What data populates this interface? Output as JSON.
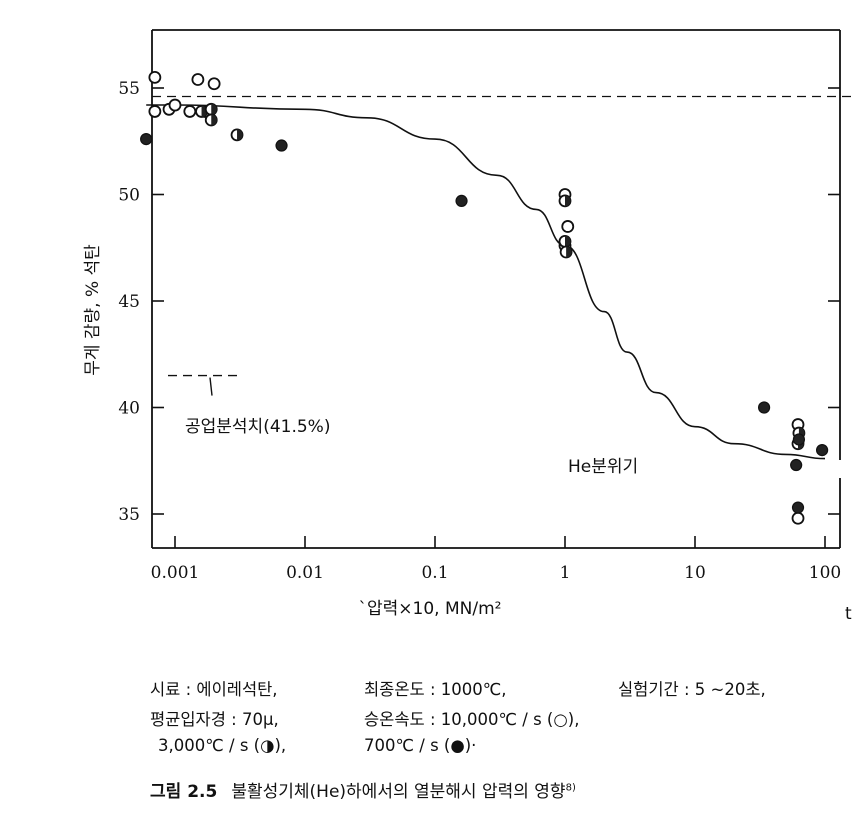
{
  "chart_data": {
    "type": "scatter",
    "x_scale": "log",
    "xlim": [
      0.0006,
      100
    ],
    "ylim": [
      34,
      57
    ],
    "x_ticks": [
      {
        "value": 0.001,
        "label": "0.001"
      },
      {
        "value": 0.01,
        "label": "0.01"
      },
      {
        "value": 0.1,
        "label": "0.1"
      },
      {
        "value": 1,
        "label": "1"
      },
      {
        "value": 10,
        "label": "10"
      },
      {
        "value": 100,
        "label": "100"
      }
    ],
    "y_ticks": [
      {
        "value": 35,
        "label": "35"
      },
      {
        "value": 40,
        "label": "40"
      },
      {
        "value": 45,
        "label": "45"
      },
      {
        "value": 50,
        "label": "50"
      },
      {
        "value": 55,
        "label": "55"
      }
    ],
    "xlabel": "`압력×10, MN/m²",
    "ylabel": "무게 감량, % 석탄",
    "annotations": {
      "industrial": "공업분석치(41.5%)",
      "atmosphere": "He분위기"
    },
    "reference_lines": {
      "industrial_value": 41.5,
      "upper_dashed": 54.6
    },
    "series": [
      {
        "name": "10,000℃/s (○)",
        "marker": "open",
        "points": [
          {
            "x": 0.0007,
            "y": 55.5
          },
          {
            "x": 0.0007,
            "y": 53.9
          },
          {
            "x": 0.0009,
            "y": 54.0
          },
          {
            "x": 0.001,
            "y": 54.2
          },
          {
            "x": 0.0013,
            "y": 53.9
          },
          {
            "x": 0.0015,
            "y": 55.4
          },
          {
            "x": 0.0017,
            "y": 53.9
          },
          {
            "x": 0.002,
            "y": 55.2
          },
          {
            "x": 1.0,
            "y": 50.0
          },
          {
            "x": 1.05,
            "y": 48.5
          },
          {
            "x": 1.0,
            "y": 47.6
          },
          {
            "x": 62,
            "y": 39.2
          },
          {
            "x": 62,
            "y": 34.8
          }
        ]
      },
      {
        "name": "3,000℃/s (◑)",
        "marker": "half",
        "points": [
          {
            "x": 0.0016,
            "y": 53.9
          },
          {
            "x": 0.0019,
            "y": 54.0
          },
          {
            "x": 0.0019,
            "y": 53.5
          },
          {
            "x": 0.003,
            "y": 52.8
          },
          {
            "x": 1.0,
            "y": 49.7
          },
          {
            "x": 1.0,
            "y": 47.8
          },
          {
            "x": 1.02,
            "y": 47.3
          },
          {
            "x": 63,
            "y": 38.8
          },
          {
            "x": 62,
            "y": 38.3
          }
        ]
      },
      {
        "name": "700℃/s (●)",
        "marker": "filled",
        "points": [
          {
            "x": 0.0006,
            "y": 52.6
          },
          {
            "x": 0.0066,
            "y": 52.3
          },
          {
            "x": 0.16,
            "y": 49.7
          },
          {
            "x": 34,
            "y": 40.0
          },
          {
            "x": 63,
            "y": 38.5
          },
          {
            "x": 60,
            "y": 37.3
          },
          {
            "x": 62,
            "y": 35.3
          },
          {
            "x": 95,
            "y": 38.0
          }
        ]
      }
    ],
    "fit_curve": [
      {
        "x": 0.0006,
        "y": 54.2
      },
      {
        "x": 0.001,
        "y": 54.2
      },
      {
        "x": 0.01,
        "y": 54.0
      },
      {
        "x": 0.03,
        "y": 53.6
      },
      {
        "x": 0.1,
        "y": 52.6
      },
      {
        "x": 0.3,
        "y": 50.9
      },
      {
        "x": 0.6,
        "y": 49.3
      },
      {
        "x": 1,
        "y": 47.6
      },
      {
        "x": 2,
        "y": 44.5
      },
      {
        "x": 3,
        "y": 42.6
      },
      {
        "x": 5,
        "y": 40.7
      },
      {
        "x": 10,
        "y": 39.1
      },
      {
        "x": 20,
        "y": 38.3
      },
      {
        "x": 50,
        "y": 37.8
      },
      {
        "x": 100,
        "y": 37.6
      }
    ]
  },
  "caption": {
    "line1": {
      "sample": "시료 : 에이레석탄,",
      "final_temp": "최종온도 : 1000℃,",
      "duration": "실험기간 : 5 ~20초,"
    },
    "line2": {
      "particle": "평균입자경 : 70μ,",
      "heating_rate": "승온속도 : 10,000℃ / s (○),"
    },
    "line3": {
      "rate_half": "3,000℃ / s (◑),",
      "rate_full": "700℃ / s (●)·"
    }
  },
  "figure_caption": {
    "number": "그림 2.5",
    "text": "불활성기체(He)하에서의 열분해시 압력의 영향",
    "ref": "8)"
  },
  "edge_fragment": "t"
}
